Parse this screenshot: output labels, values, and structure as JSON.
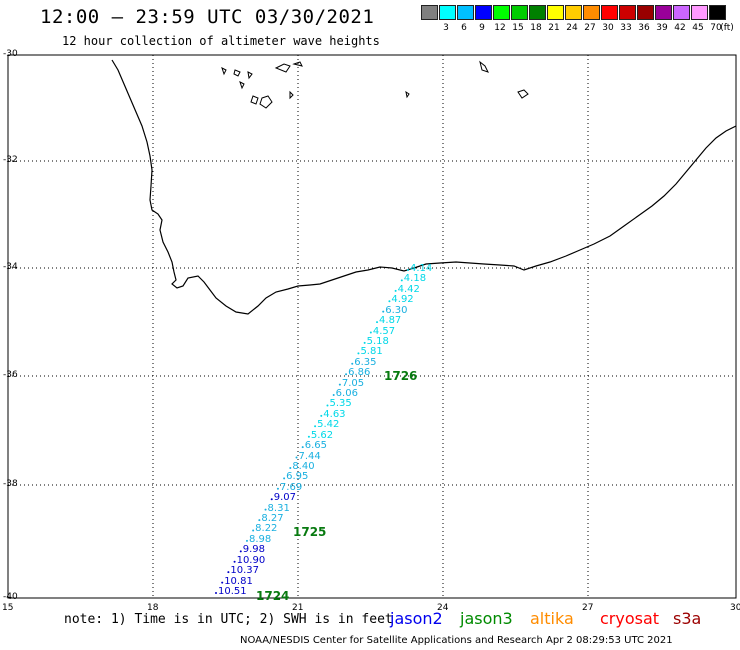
{
  "header": {
    "title": "12:00 – 23:59 UTC 03/30/2021",
    "subtitle": "12 hour collection of altimeter wave heights"
  },
  "legend": {
    "unit": "(ft)",
    "items": [
      {
        "label": "",
        "color": "#808080"
      },
      {
        "label": "3",
        "color": "#00ffff"
      },
      {
        "label": "6",
        "color": "#00bfff"
      },
      {
        "label": "9",
        "color": "#0000ff"
      },
      {
        "label": "12",
        "color": "#00ff00"
      },
      {
        "label": "15",
        "color": "#00cc00"
      },
      {
        "label": "18",
        "color": "#008000"
      },
      {
        "label": "21",
        "color": "#ffff00"
      },
      {
        "label": "24",
        "color": "#ffcc00"
      },
      {
        "label": "27",
        "color": "#ff8c00"
      },
      {
        "label": "30",
        "color": "#ff0000"
      },
      {
        "label": "33",
        "color": "#cc0000"
      },
      {
        "label": "36",
        "color": "#990000"
      },
      {
        "label": "39",
        "color": "#990099"
      },
      {
        "label": "42",
        "color": "#cc66ff"
      },
      {
        "label": "45",
        "color": "#ff99ff"
      },
      {
        "label": "70",
        "color": "#000000"
      }
    ]
  },
  "axes": {
    "lat_labels": [
      "-30",
      "-32",
      "-34",
      "-36",
      "-38",
      "-40"
    ],
    "lon_labels": [
      "15",
      "18",
      "21",
      "24",
      "27",
      "30"
    ]
  },
  "observations": [
    {
      "value": "4.14",
      "color": "#00d8e8"
    },
    {
      "value": "4.18",
      "color": "#00d8e8"
    },
    {
      "value": "4.42",
      "color": "#00d8e8"
    },
    {
      "value": "4.92",
      "color": "#00d8e8"
    },
    {
      "value": "6.30",
      "color": "#1ab0e0"
    },
    {
      "value": "4.87",
      "color": "#00d8e8"
    },
    {
      "value": "4.57",
      "color": "#00d8e8"
    },
    {
      "value": "5.18",
      "color": "#00d8e8"
    },
    {
      "value": "5.81",
      "color": "#00d8e8"
    },
    {
      "value": "6.35",
      "color": "#1ab0e0"
    },
    {
      "value": "6.86",
      "color": "#1ab0e0"
    },
    {
      "value": "7.05",
      "color": "#1ab0e0"
    },
    {
      "value": "6.06",
      "color": "#1ab0e0"
    },
    {
      "value": "5.35",
      "color": "#00d8e8"
    },
    {
      "value": "4.63",
      "color": "#00d8e8"
    },
    {
      "value": "5.42",
      "color": "#00d8e8"
    },
    {
      "value": "5.62",
      "color": "#00d8e8"
    },
    {
      "value": "6.65",
      "color": "#1ab0e0"
    },
    {
      "value": "7.44",
      "color": "#1ab0e0"
    },
    {
      "value": "8.40",
      "color": "#1ab0e0"
    },
    {
      "value": "6.95",
      "color": "#1ab0e0"
    },
    {
      "value": "7.69",
      "color": "#1ab0e0"
    },
    {
      "value": "9.07",
      "color": "#0000c8"
    },
    {
      "value": "8.31",
      "color": "#1ab0e0"
    },
    {
      "value": "8.27",
      "color": "#1ab0e0"
    },
    {
      "value": "8.22",
      "color": "#1ab0e0"
    },
    {
      "value": "8.98",
      "color": "#1ab0e0"
    },
    {
      "value": "9.98",
      "color": "#0000c8"
    },
    {
      "value": "10.90",
      "color": "#0000c8"
    },
    {
      "value": "10.37",
      "color": "#0000c8"
    },
    {
      "value": "10.81",
      "color": "#0000c8"
    },
    {
      "value": "10.51",
      "color": "#0000c8"
    }
  ],
  "passes": [
    "1726",
    "1725",
    "1724"
  ],
  "note": "note: 1) Time is in UTC; 2) SWH is in feet",
  "satellites": [
    {
      "name": "jason2",
      "color": "#0000ee"
    },
    {
      "name": "jason3",
      "color": "#008a00"
    },
    {
      "name": "altika",
      "color": "#ff8c00"
    },
    {
      "name": "cryosat",
      "color": "#ff0000"
    },
    {
      "name": "s3a",
      "color": "#9b0000"
    }
  ],
  "footer": "NOAA/NESDIS Center for Satellite Applications and Research   Apr  2 08:29:53 UTC 2021"
}
